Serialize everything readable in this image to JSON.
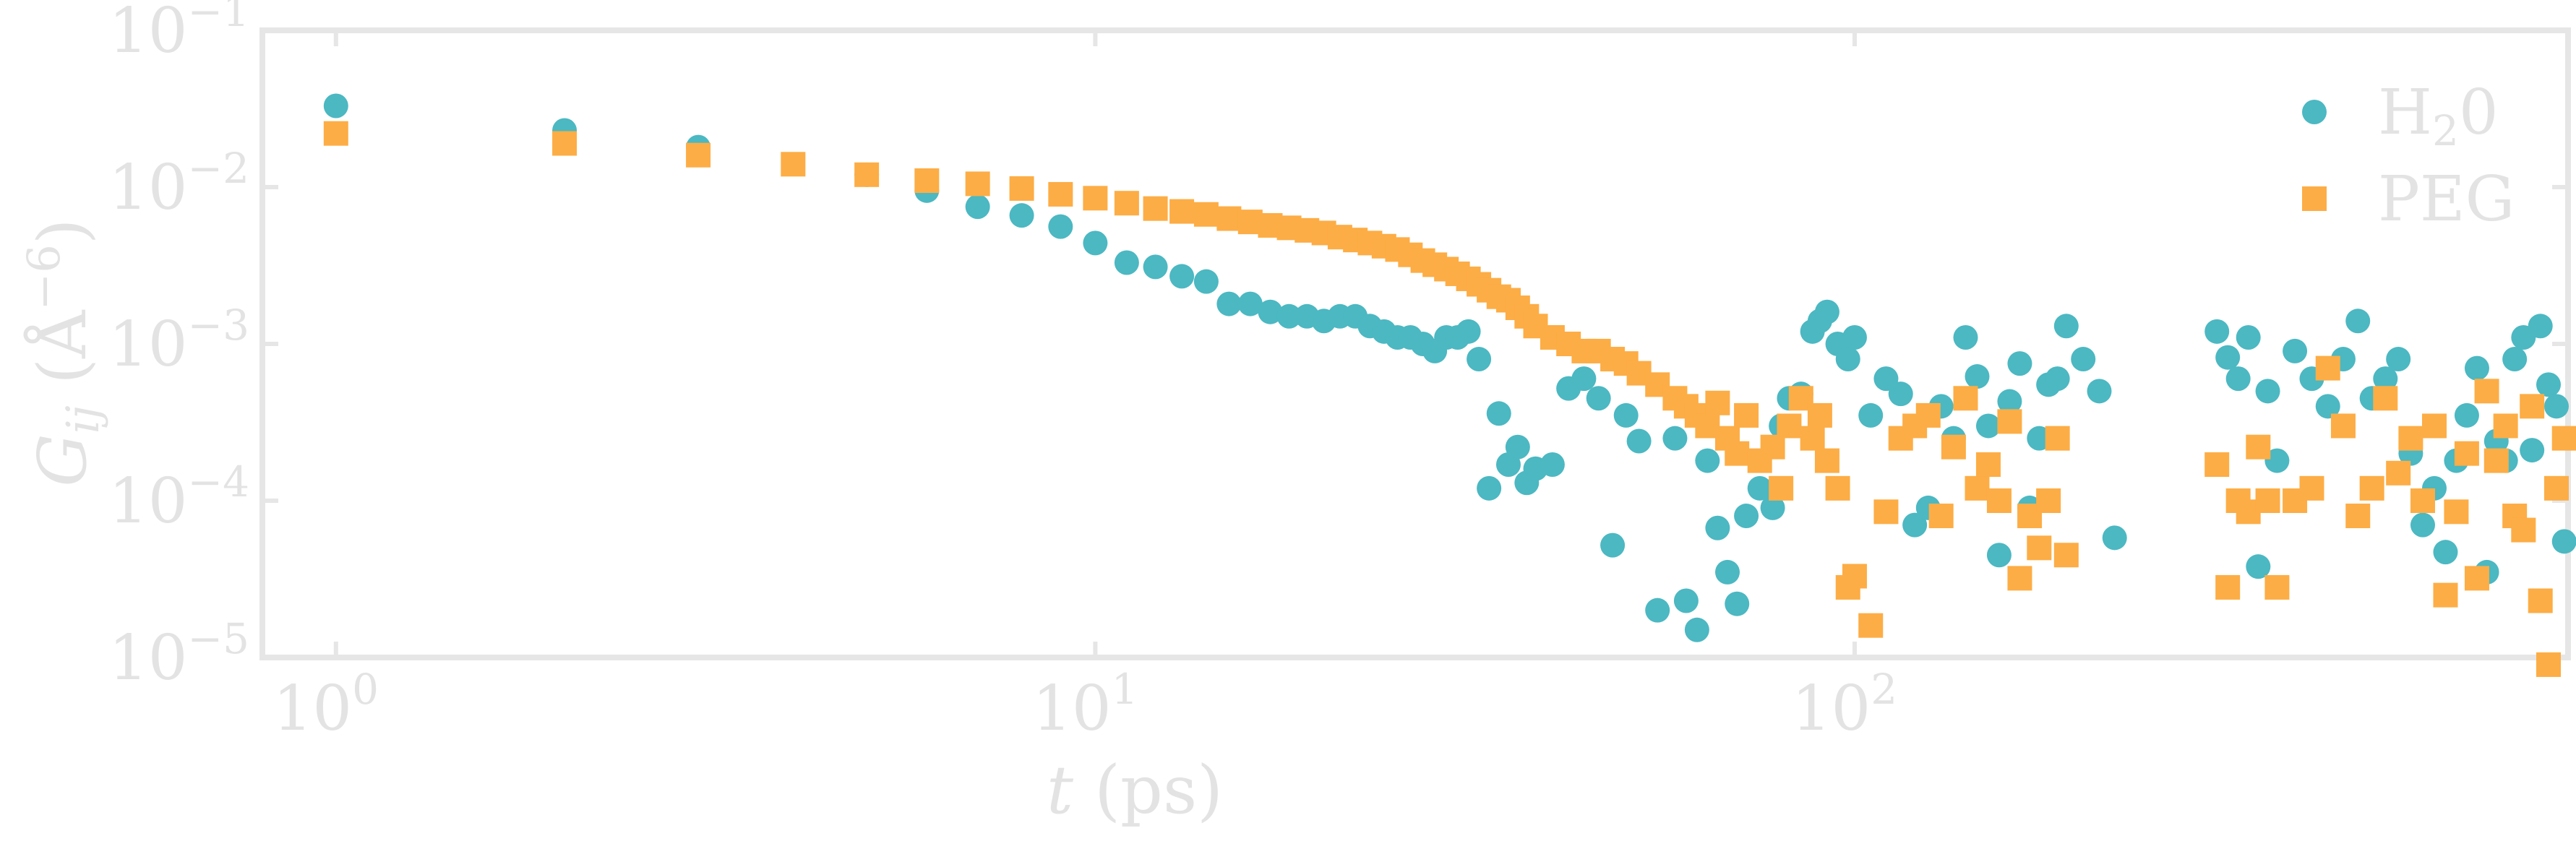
{
  "chart_data": {
    "type": "scatter",
    "xlabel": "t (ps)",
    "ylabel": "G_ij (Å^-6)",
    "x_scale": "log",
    "y_scale": "log",
    "xlim": [
      0.8,
      870
    ],
    "ylim": [
      1e-05,
      0.1
    ],
    "x_ticks": [
      {
        "value": 1,
        "base": "10",
        "exp": "0"
      },
      {
        "value": 10,
        "base": "10",
        "exp": "1"
      },
      {
        "value": 100,
        "base": "10",
        "exp": "2"
      }
    ],
    "y_ticks": [
      {
        "value": 1e-05,
        "base": "10",
        "exp": "−5"
      },
      {
        "value": 0.0001,
        "base": "10",
        "exp": "−4"
      },
      {
        "value": 0.001,
        "base": "10",
        "exp": "−3"
      },
      {
        "value": 0.01,
        "base": "10",
        "exp": "−2"
      },
      {
        "value": 0.1,
        "base": "10",
        "exp": "−1"
      }
    ],
    "grid": false,
    "legend_position": "top-right",
    "series": [
      {
        "name": "H₂0",
        "marker": "circle",
        "color": "#4bb8c2",
        "x": [
          1,
          2,
          3,
          5,
          6,
          7,
          8,
          9,
          10,
          11,
          12,
          13,
          14,
          15,
          16,
          17,
          18,
          19,
          20,
          21,
          22,
          23,
          24,
          25,
          26,
          27,
          28,
          29,
          30,
          31,
          32,
          33,
          34,
          35,
          36,
          37,
          38,
          40,
          42,
          44,
          46,
          48,
          50,
          52,
          55,
          58,
          60,
          62,
          64,
          66,
          68,
          70,
          72,
          75,
          78,
          80,
          82,
          85,
          88,
          90,
          92,
          95,
          98,
          100,
          105,
          110,
          115,
          120,
          125,
          130,
          135,
          140,
          145,
          150,
          155,
          160,
          165,
          170,
          175,
          180,
          185,
          190,
          200,
          210,
          220,
          300,
          310,
          320,
          330,
          340,
          350,
          360,
          380,
          400,
          420,
          440,
          460,
          480,
          500,
          520,
          540,
          560,
          580,
          600,
          620,
          640,
          660,
          680,
          700,
          720,
          740,
          760,
          780,
          800,
          820,
          840,
          860
        ],
        "y": [
          0.033,
          0.023,
          0.018,
          0.012,
          0.0095,
          0.0075,
          0.0066,
          0.0056,
          0.0044,
          0.0033,
          0.0031,
          0.0027,
          0.0025,
          0.0018,
          0.0018,
          0.0016,
          0.0015,
          0.0015,
          0.0014,
          0.0015,
          0.0015,
          0.0013,
          0.0012,
          0.0011,
          0.0011,
          0.001,
          0.0009,
          0.0011,
          0.0011,
          0.0012,
          0.0008,
          0.00012,
          0.00036,
          0.00017,
          0.00022,
          0.00013,
          0.00016,
          0.00017,
          0.00052,
          0.0006,
          0.00045,
          5.2e-05,
          0.00035,
          0.00024,
          2e-05,
          0.00025,
          2.3e-05,
          1.5e-05,
          0.00018,
          6.7e-05,
          3.5e-05,
          2.2e-05,
          8e-05,
          0.00012,
          9e-05,
          0.0003,
          0.00045,
          0.00048,
          0.0012,
          0.0014,
          0.0016,
          0.001,
          0.0008,
          0.0011,
          0.00035,
          0.0006,
          0.00048,
          7e-05,
          9e-05,
          0.0004,
          0.00025,
          0.0011,
          0.00062,
          0.0003,
          4.5e-05,
          0.00043,
          0.00075,
          9e-05,
          0.00025,
          0.00055,
          0.0006,
          0.0013,
          0.0008,
          0.0005,
          5.8e-05,
          0.0012,
          0.00082,
          0.0006,
          0.0011,
          3.8e-05,
          0.0005,
          0.00018,
          0.0009,
          0.0006,
          0.0004,
          0.0008,
          0.0014,
          0.00045,
          0.0006,
          0.0008,
          0.0002,
          7e-05,
          0.00012,
          4.7e-05,
          0.00018,
          0.00035,
          0.0007,
          3.5e-05,
          0.00024,
          0.00018,
          0.0008,
          0.0011,
          0.00021,
          0.0013,
          0.00055,
          0.0004,
          5.5e-05
        ]
      },
      {
        "name": "PEG",
        "marker": "square",
        "color": "#fdad45",
        "x": [
          1,
          2,
          3,
          4,
          5,
          6,
          7,
          8,
          9,
          10,
          11,
          12,
          13,
          14,
          15,
          16,
          17,
          18,
          19,
          20,
          21,
          22,
          23,
          24,
          25,
          26,
          27,
          28,
          29,
          30,
          31,
          32,
          33,
          34,
          35,
          36,
          37,
          38,
          40,
          42,
          44,
          46,
          48,
          50,
          52,
          55,
          58,
          60,
          62,
          64,
          66,
          68,
          70,
          72,
          75,
          78,
          80,
          82,
          85,
          88,
          90,
          92,
          95,
          98,
          100,
          105,
          110,
          115,
          120,
          125,
          130,
          135,
          140,
          145,
          150,
          155,
          160,
          165,
          170,
          175,
          180,
          185,
          190,
          300,
          310,
          320,
          330,
          340,
          350,
          360,
          380,
          400,
          420,
          440,
          460,
          480,
          500,
          520,
          540,
          560,
          580,
          600,
          620,
          640,
          660,
          680,
          700,
          720,
          740,
          760,
          780,
          800,
          820,
          840,
          860
        ],
        "y": [
          0.022,
          0.019,
          0.016,
          0.014,
          0.012,
          0.011,
          0.0105,
          0.0098,
          0.009,
          0.0085,
          0.0079,
          0.0073,
          0.007,
          0.0067,
          0.0063,
          0.006,
          0.0057,
          0.0055,
          0.0053,
          0.0051,
          0.0048,
          0.0046,
          0.0044,
          0.0042,
          0.004,
          0.0037,
          0.0034,
          0.0032,
          0.003,
          0.0028,
          0.0026,
          0.0024,
          0.0022,
          0.002,
          0.0019,
          0.0017,
          0.0015,
          0.0013,
          0.0011,
          0.001,
          0.0009,
          0.0009,
          0.0008,
          0.00075,
          0.00065,
          0.00055,
          0.00045,
          0.0004,
          0.00035,
          0.0003,
          0.00042,
          0.00025,
          0.0002,
          0.00035,
          0.00018,
          0.00022,
          0.00012,
          0.0003,
          0.00045,
          0.00025,
          0.00035,
          0.00018,
          0.00012,
          2.8e-05,
          3.3e-05,
          1.6e-05,
          8.5e-05,
          0.00025,
          0.0003,
          0.00035,
          8e-05,
          0.00022,
          0.00045,
          0.00012,
          0.00017,
          0.0001,
          0.00032,
          3.2e-05,
          8e-05,
          5e-05,
          0.0001,
          0.00025,
          4.5e-05,
          0.00017,
          2.8e-05,
          0.0001,
          8.5e-05,
          0.00022,
          0.0001,
          2.8e-05,
          0.0001,
          0.00012,
          0.0007,
          0.0003,
          8e-05,
          0.00012,
          0.00045,
          0.00015,
          0.00025,
          0.0001,
          0.0003,
          2.5e-05,
          8.5e-05,
          0.0002,
          3.2e-05,
          0.0005,
          0.00018,
          0.0003,
          8e-05,
          6.5e-05,
          0.0004,
          2.3e-05,
          9e-06,
          0.00012,
          0.00025
        ]
      }
    ]
  }
}
